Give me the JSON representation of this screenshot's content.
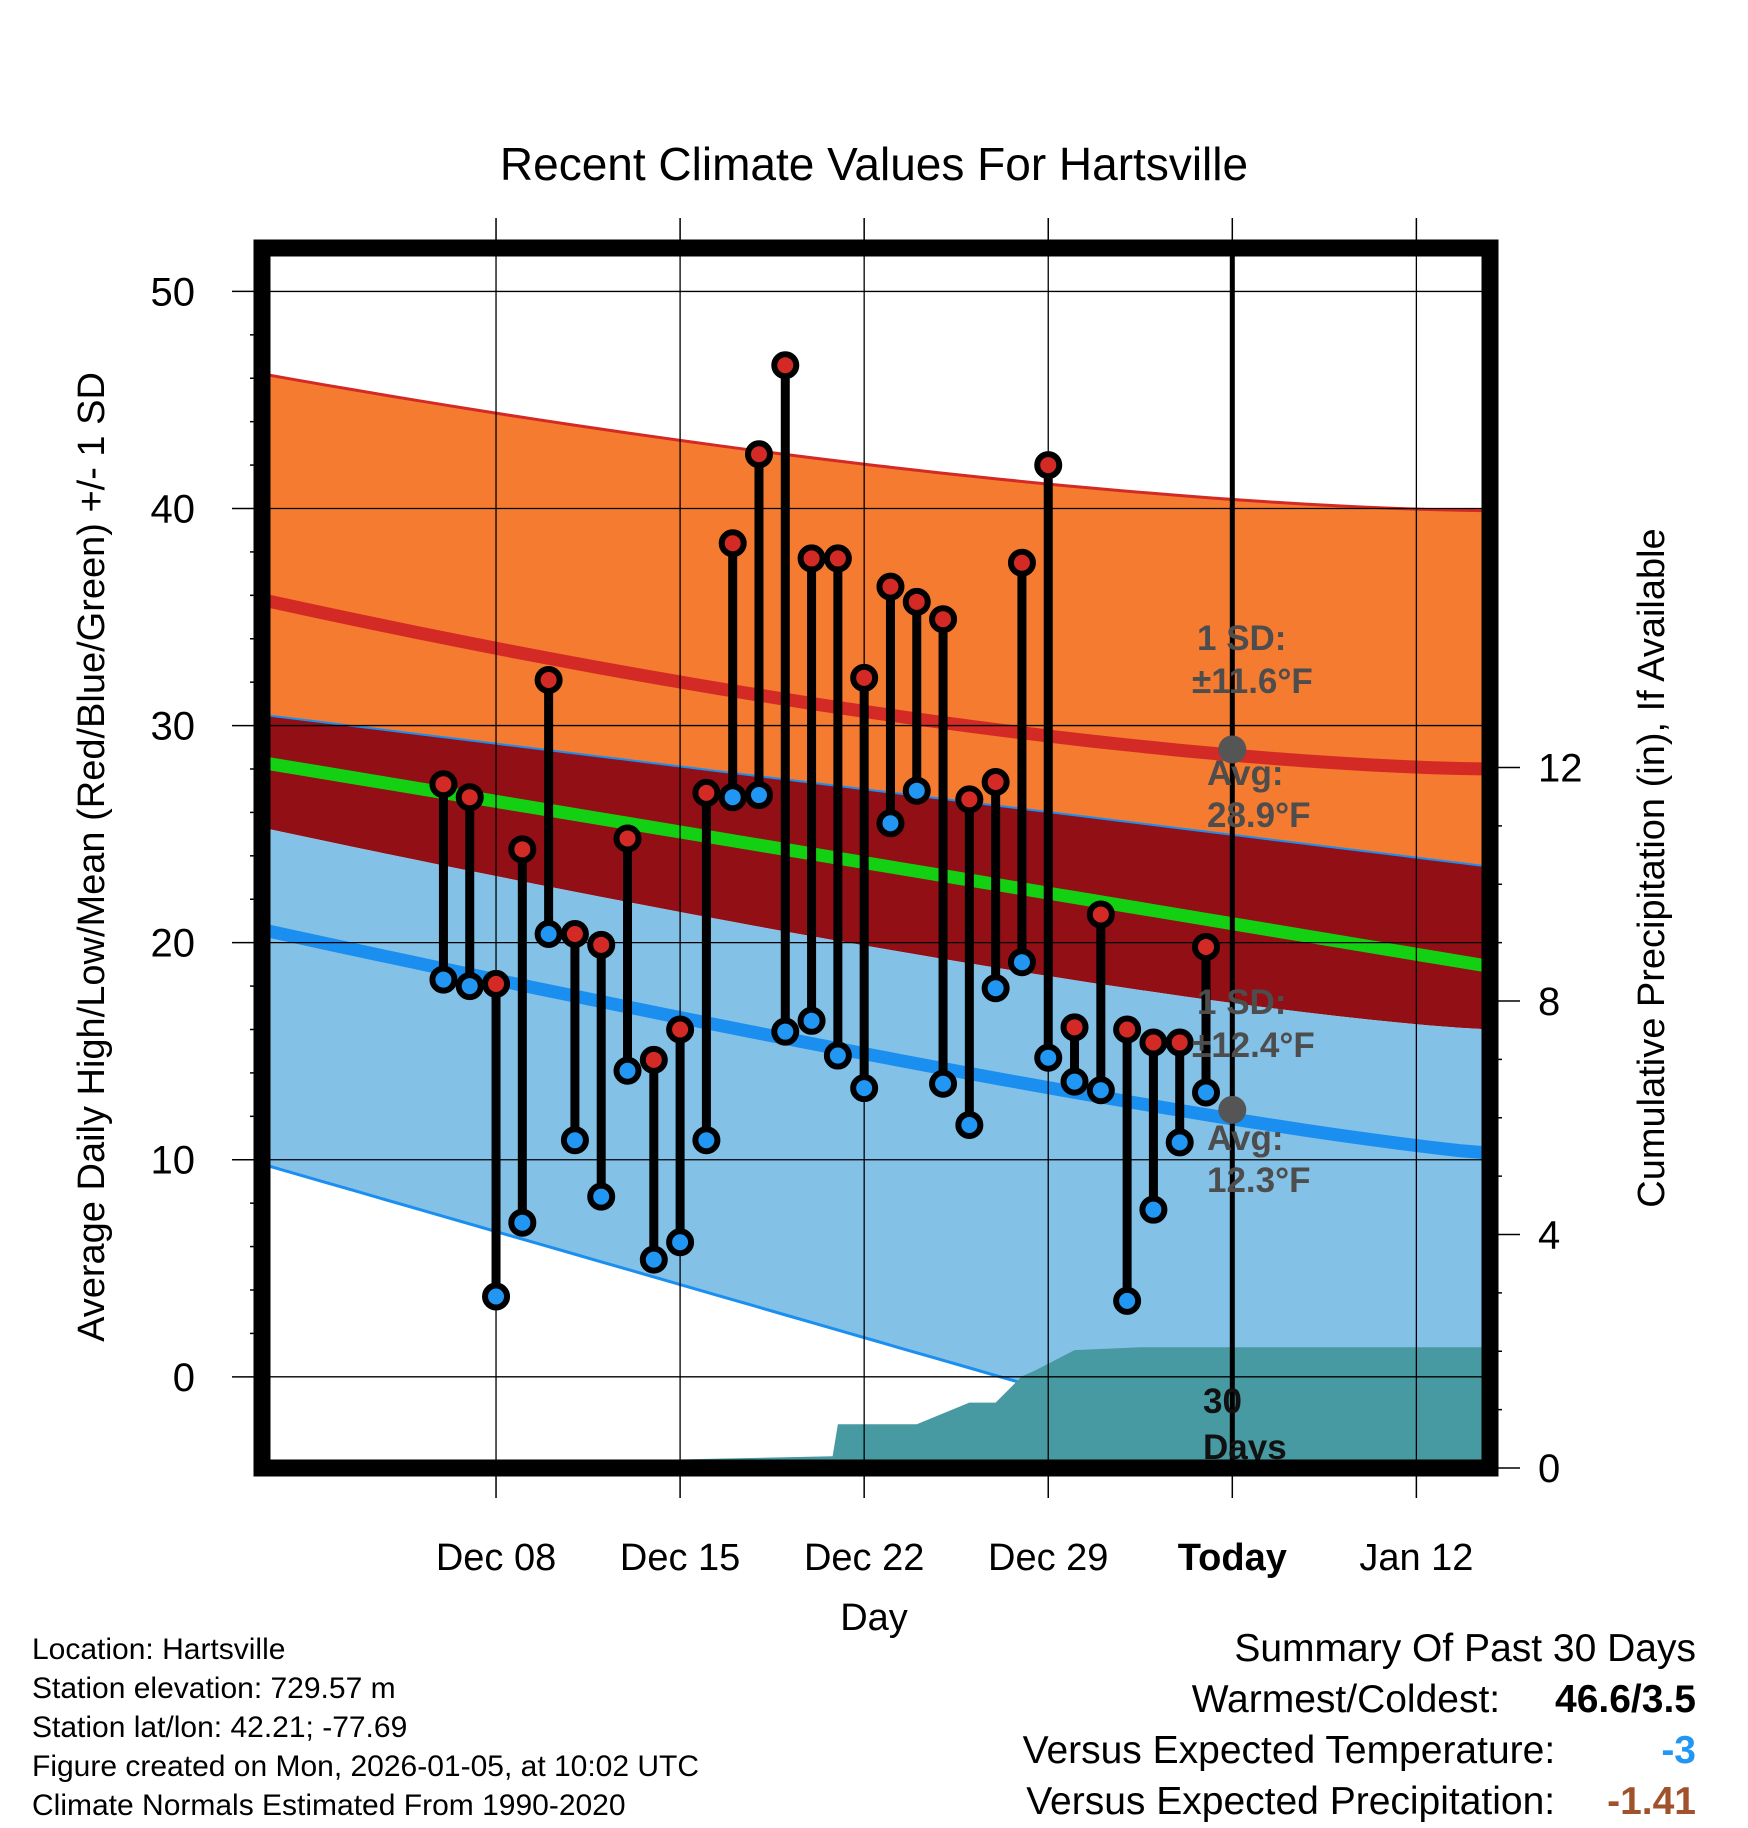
{
  "chart_data": {
    "type": "line",
    "title": "Recent Climate Values For Hartsville",
    "xlabel": "Day",
    "ylabel": "Average Daily High/Low/Mean (Red/Blue/Green) +/- 1 SD",
    "y2label": "Cumulative Precipitation (in), If Available",
    "ylim": [
      -4.2,
      52
    ],
    "y2lim": [
      0,
      20.9
    ],
    "xlim": [
      -36.9,
      9.8
    ],
    "yticks": [
      "0",
      "10",
      "20",
      "30",
      "40",
      "50"
    ],
    "y2ticks": [
      "0",
      "4",
      "8",
      "12"
    ],
    "xticks": [
      {
        "label": "Dec 08",
        "day": -28
      },
      {
        "label": "Dec 15",
        "day": -21
      },
      {
        "label": "Dec 22",
        "day": -14
      },
      {
        "label": "Dec 29",
        "day": -7
      },
      {
        "label": "Today",
        "day": 0
      },
      {
        "label": "Jan 12",
        "day": 7
      }
    ],
    "normals": {
      "days": [
        -36.9,
        9.8
      ],
      "high_avg": [
        35.8,
        28.0
      ],
      "high_upper": [
        46.2,
        39.9
      ],
      "low_avg": [
        20.6,
        10.3
      ],
      "low_lower": [
        9.8,
        -6.5
      ],
      "mean": [
        28.3,
        18.9
      ],
      "high_sd_label": "1 SD:",
      "high_sd_value": "±11.6°F",
      "high_avg_label": "Avg:",
      "high_avg_value": "28.9°F",
      "high_avg_today": 28.9,
      "low_sd_label": "1 SD:",
      "low_sd_value": "±12.4°F",
      "low_avg_label": "Avg:",
      "low_avg_value": "12.3°F",
      "low_avg_today": 12.3
    },
    "days": [
      -30,
      -29,
      -28,
      -27,
      -26,
      -25,
      -24,
      -23,
      -22,
      -21,
      -20,
      -19,
      -18,
      -17,
      -16,
      -15,
      -14,
      -13,
      -12,
      -11,
      -10,
      -9,
      -8,
      -7,
      -6,
      -5,
      -4,
      -3,
      -2,
      -1
    ],
    "series": [
      {
        "name": "High",
        "values": [
          27.3,
          26.7,
          18.1,
          24.3,
          32.1,
          20.4,
          19.9,
          24.8,
          14.6,
          16.0,
          26.9,
          38.4,
          42.5,
          46.6,
          37.7,
          37.7,
          32.2,
          36.4,
          35.7,
          34.9,
          26.6,
          27.4,
          37.5,
          42.0,
          16.1,
          21.3,
          16.0,
          15.4,
          15.4,
          19.8
        ]
      },
      {
        "name": "Low",
        "values": [
          18.3,
          18.0,
          3.7,
          7.1,
          20.4,
          10.9,
          8.3,
          14.1,
          5.4,
          6.2,
          10.9,
          26.7,
          26.8,
          15.9,
          16.4,
          14.8,
          13.3,
          25.5,
          27.0,
          13.5,
          11.6,
          17.9,
          19.1,
          14.7,
          13.6,
          13.2,
          3.5,
          7.7,
          10.8,
          13.1
        ]
      }
    ],
    "precip_cumulative": {
      "days": [
        -36.9,
        -15.2,
        -15,
        -12,
        -10,
        -9,
        -8,
        -7.5,
        -6,
        -3.5,
        0,
        9.8
      ],
      "values": [
        0,
        0.2,
        0.75,
        0.75,
        1.12,
        1.12,
        1.57,
        1.67,
        2.02,
        2.07,
        2.07,
        2.07
      ]
    },
    "precip_label": "30",
    "precip_label2": "Days"
  },
  "info": {
    "location": "Location: Hartsville",
    "elevation": "Station elevation: 729.57 m",
    "latlon": "Station lat/lon: 42.21; -77.69",
    "created": "Figure created on Mon, 2026-01-05, at 10:02 UTC",
    "normals": "Climate Normals Estimated From 1990-2020"
  },
  "summary": {
    "title": "Summary Of Past 30 Days",
    "warm_cold_label": "Warmest/Coldest:",
    "warm_cold_value": "46.6/3.5",
    "temp_label": "Versus Expected Temperature:",
    "temp_value": "-3",
    "precip_label": "Versus Expected Precipitation:",
    "precip_value": "-1.41"
  },
  "colors": {
    "high_band": "#f47b30",
    "high_line": "#d42a25",
    "mid_band": "#920f15",
    "low_band": "#84c1e7",
    "low_line": "#1b8ff0",
    "mean_line": "#13d112",
    "precip_fill": "#479aa1",
    "high_marker": "#d42a25",
    "low_marker": "#2196f3",
    "temp_value": "#2196f3",
    "precip_value": "#a0522d"
  }
}
